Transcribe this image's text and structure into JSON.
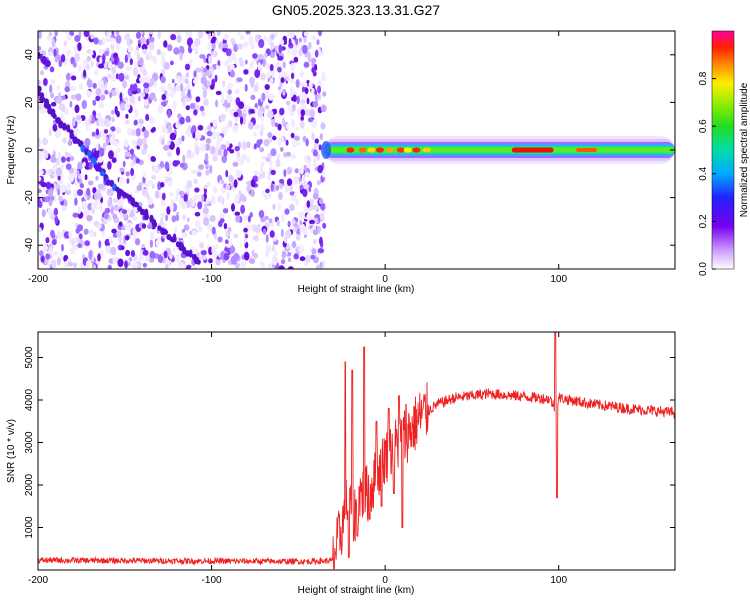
{
  "title": "GN05.2025.323.13.31.G27",
  "chart_data": [
    {
      "type": "heatmap",
      "xlabel": "Height of straight line (km)",
      "ylabel": "Frequency (Hz)",
      "xlim": [
        -200,
        167
      ],
      "ylim": [
        -50,
        50
      ],
      "xticks": [
        -200,
        -100,
        0,
        100
      ],
      "yticks": [
        -40,
        -20,
        0,
        20,
        40
      ],
      "colorbar": {
        "label": "Normalized spectral amplitude",
        "range": [
          0,
          1
        ],
        "ticks": [
          "0.0",
          "0.2",
          "0.4",
          "0.6",
          "0.8"
        ],
        "colormap": "rainbow (white-violet-blue-cyan-green-yellow-red-magenta)"
      },
      "features": {
        "noise_region_x": [
          -200,
          -35
        ],
        "carrier_x": [
          -35,
          167
        ],
        "carrier_frequency_hz": 0,
        "diagonal_trace": [
          [
            -200,
            25
          ],
          [
            -190,
            14
          ],
          [
            -170,
            -2
          ],
          [
            -160,
            -13
          ],
          [
            -145,
            -22
          ],
          [
            -125,
            -36
          ],
          [
            -105,
            -48
          ]
        ]
      }
    },
    {
      "type": "line",
      "xlabel": "Height of straight line (km)",
      "ylabel": "SNR (10 * v/v)",
      "xlim": [
        -200,
        167
      ],
      "ylim": [
        0,
        5600
      ],
      "xticks": [
        -200,
        -100,
        0,
        100
      ],
      "yticks": [
        1000,
        2000,
        3000,
        4000,
        5000
      ],
      "series": [
        {
          "color": "#ee2222",
          "envelope": [
            [
              -200,
              230
            ],
            [
              -150,
              220
            ],
            [
              -100,
              210
            ],
            [
              -45,
              200
            ],
            [
              -30,
              220
            ],
            [
              -25,
              1000
            ],
            [
              -22,
              1600
            ],
            [
              -18,
              1200
            ],
            [
              -15,
              1800
            ],
            [
              -10,
              1800
            ],
            [
              -5,
              2200
            ],
            [
              0,
              2700
            ],
            [
              5,
              2900
            ],
            [
              10,
              3100
            ],
            [
              15,
              3300
            ],
            [
              20,
              3600
            ],
            [
              30,
              3900
            ],
            [
              40,
              4050
            ],
            [
              60,
              4150
            ],
            [
              80,
              4080
            ],
            [
              95,
              4020
            ],
            [
              98,
              3800
            ],
            [
              100,
              4050
            ],
            [
              120,
              3900
            ],
            [
              140,
              3800
            ],
            [
              167,
              3700
            ]
          ],
          "spikes": [
            [
              -23,
              4900
            ],
            [
              -21,
              300
            ],
            [
              -19,
              4700
            ],
            [
              -16,
              800
            ],
            [
              -12,
              5250
            ],
            [
              -9,
              1200
            ],
            [
              -5,
              3500
            ],
            [
              -2,
              1500
            ],
            [
              2,
              3800
            ],
            [
              5,
              1800
            ],
            [
              8,
              4100
            ],
            [
              10,
              1000
            ],
            [
              12,
              3900
            ],
            [
              98,
              5700
            ],
            [
              99,
              1700
            ]
          ]
        }
      ]
    }
  ]
}
